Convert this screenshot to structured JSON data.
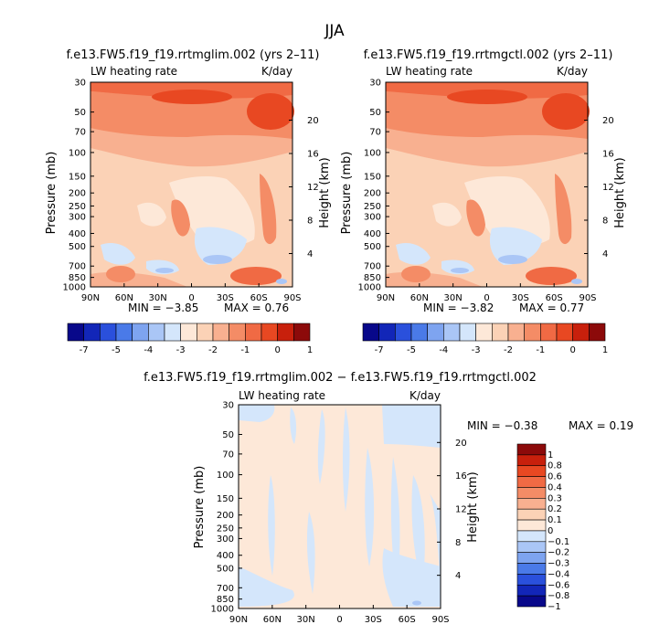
{
  "figure": {
    "title": "JJA",
    "panel_a": {
      "title": "f.e13.FW5.f19_f19.rrtmglim.002 (yrs 2–11)",
      "var_label": "LW heating rate",
      "units": "K/day",
      "min_text": "MIN = −3.85",
      "max_text": "MAX = 0.76"
    },
    "panel_b": {
      "title": "f.e13.FW5.f19_f19.rrtmgctl.002 (yrs 2–11)",
      "var_label": "LW heating rate",
      "units": "K/day",
      "min_text": "MIN = −3.82",
      "max_text": "MAX = 0.77"
    },
    "panel_c": {
      "title": "f.e13.FW5.f19_f19.rrtmglim.002 − f.e13.FW5.f19_f19.rrtmgctl.002",
      "var_label": "LW heating rate",
      "units": "K/day",
      "min_text": "MIN = −0.38",
      "max_text": "MAX = 0.19"
    }
  },
  "chart_data": [
    {
      "type": "heatmap",
      "panel": "panel_a",
      "title": "f.e13.FW5.f19_f19.rrtmglim.002 (yrs 2–11)",
      "xlabel": "",
      "ylabel": "Pressure (mb)",
      "y2label": "Height (km)",
      "x_ticks": [
        "90N",
        "60N",
        "30N",
        "0",
        "30S",
        "60S",
        "90S"
      ],
      "y_ticks": [
        "30",
        "50",
        "70",
        "100",
        "150",
        "200",
        "250",
        "300",
        "400",
        "500",
        "700",
        "850",
        "1000"
      ],
      "y2_ticks": [
        "20",
        "16",
        "12",
        "8",
        "4"
      ],
      "min": -3.85,
      "max": 0.76,
      "colorbar": [
        "-7",
        "-5",
        "-4",
        "-3",
        "-2",
        "-1",
        "0",
        "1"
      ]
    },
    {
      "type": "heatmap",
      "panel": "panel_b",
      "title": "f.e13.FW5.f19_f19.rrtmgctl.002 (yrs 2–11)",
      "xlabel": "",
      "ylabel": "Pressure (mb)",
      "y2label": "Height (km)",
      "x_ticks": [
        "90N",
        "60N",
        "30N",
        "0",
        "30S",
        "60S",
        "90S"
      ],
      "y_ticks": [
        "30",
        "50",
        "70",
        "100",
        "150",
        "200",
        "250",
        "300",
        "400",
        "500",
        "700",
        "850",
        "1000"
      ],
      "y2_ticks": [
        "20",
        "16",
        "12",
        "8",
        "4"
      ],
      "min": -3.82,
      "max": 0.77,
      "colorbar": [
        "-7",
        "-5",
        "-4",
        "-3",
        "-2",
        "-1",
        "0",
        "1"
      ]
    },
    {
      "type": "heatmap",
      "panel": "panel_c",
      "title": "f.e13.FW5.f19_f19.rrtmglim.002 − f.e13.FW5.f19_f19.rrtmgctl.002",
      "xlabel": "",
      "ylabel": "Pressure (mb)",
      "y2label": "Height (km)",
      "x_ticks": [
        "90N",
        "60N",
        "30N",
        "0",
        "30S",
        "60S",
        "90S"
      ],
      "y_ticks": [
        "30",
        "50",
        "70",
        "100",
        "150",
        "200",
        "250",
        "300",
        "400",
        "500",
        "700",
        "850",
        "1000"
      ],
      "y2_ticks": [
        "20",
        "16",
        "12",
        "8",
        "4"
      ],
      "min": -0.38,
      "max": 0.19,
      "colorbar": [
        "1",
        "0.8",
        "0.6",
        "0.4",
        "0.3",
        "0.2",
        "0.1",
        "0",
        "−0.1",
        "−0.2",
        "−0.3",
        "−0.4",
        "−0.6",
        "−0.8",
        "−1"
      ]
    }
  ],
  "colors": {
    "full_scale": [
      "#08088a",
      "#1226b8",
      "#2a50dc",
      "#4a7ae8",
      "#7ea4f0",
      "#aac6f6",
      "#d4e6fb",
      "#fde8d8",
      "#fbd2b6",
      "#f8b090",
      "#f48c66",
      "#f06a44",
      "#e84822",
      "#c8200c",
      "#8c0a0a"
    ],
    "diff_scale": [
      "#8c0a0a",
      "#c8200c",
      "#e84822",
      "#f06a44",
      "#f48c66",
      "#f8b090",
      "#fbd2b6",
      "#fde8d8",
      "#d4e6fb",
      "#aac6f6",
      "#7ea4f0",
      "#4a7ae8",
      "#2a50dc",
      "#1226b8",
      "#08088a"
    ]
  }
}
